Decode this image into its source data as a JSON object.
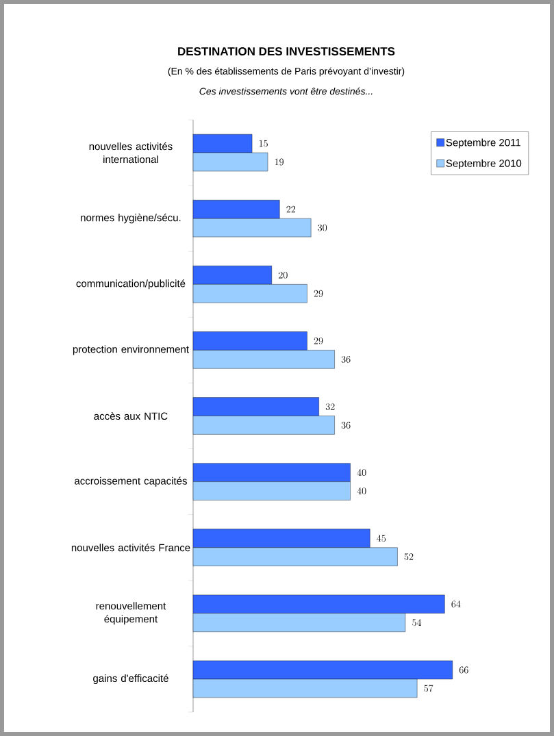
{
  "chart_data": {
    "type": "bar",
    "orientation": "horizontal",
    "title": "DESTINATION DES INVESTISSEMENTS",
    "subtitle": "(En % des établissements de Paris prévoyant d’investir)",
    "annotations": [
      "Ces investissements vont être destinés..."
    ],
    "categories": [
      "nouvelles activités international",
      "normes hygiène/sécu.",
      "communication/publicité",
      "protection environnement",
      "accès aux NTIC",
      "accroissement capacités",
      "nouvelles activités France",
      "renouvellement équipement",
      "gains d'efficacité"
    ],
    "series": [
      {
        "name": "Septembre 2011",
        "color": "#3366ff",
        "values": [
          15,
          22,
          20,
          29,
          32,
          40,
          45,
          64,
          66
        ]
      },
      {
        "name": "Septembre 2010",
        "color": "#99ccff",
        "values": [
          19,
          30,
          29,
          36,
          36,
          40,
          52,
          54,
          57
        ]
      }
    ],
    "data_labels": true,
    "legend": "top right"
  }
}
